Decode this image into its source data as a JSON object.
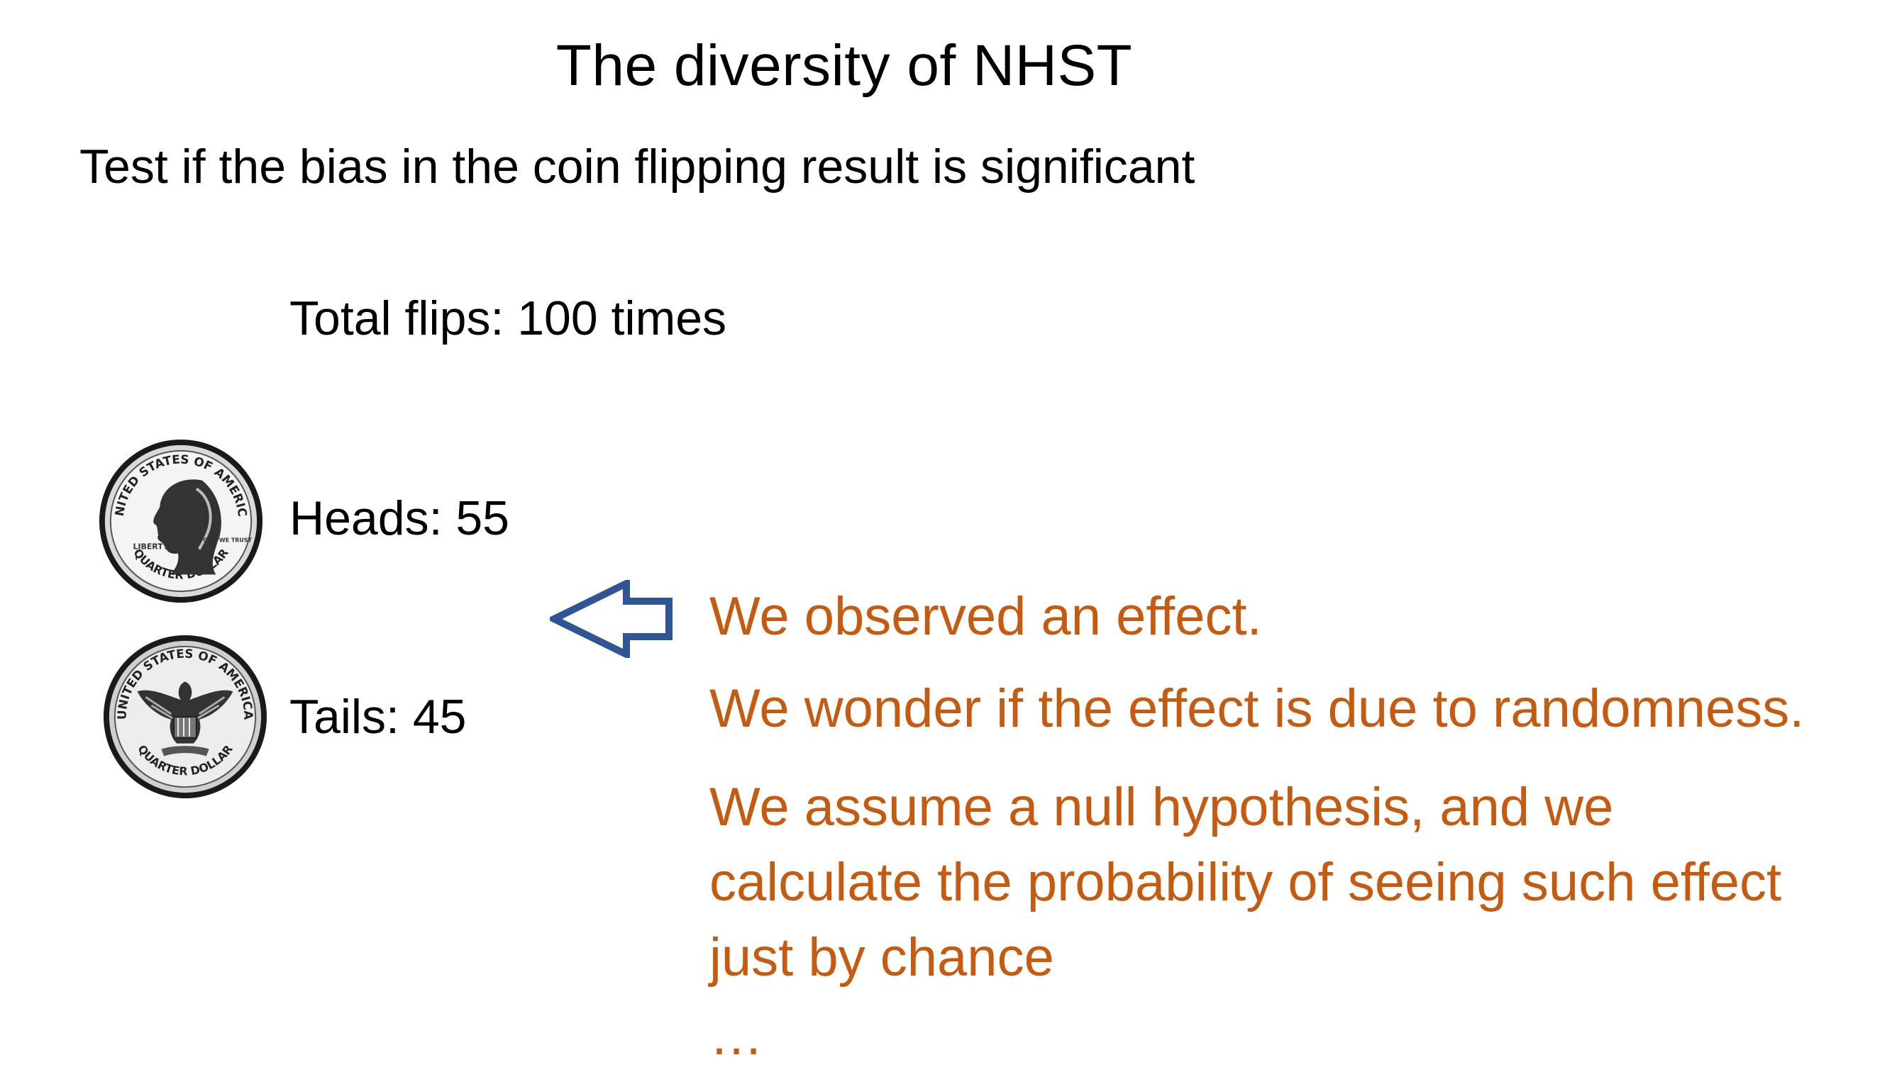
{
  "slide": {
    "title": "The diversity of NHST",
    "subtitle": "Test if the bias in the coin flipping result is significant",
    "total_flips": "Total flips: 100 times",
    "heads": {
      "label": "Heads: 55",
      "coin_icon": "quarter-heads-icon"
    },
    "tails": {
      "label": "Tails: 45",
      "coin_icon": "quarter-tails-icon"
    },
    "arrow_icon": "left-arrow-outline-icon",
    "explanation": {
      "line1": "We observed an effect.",
      "line2": "We wonder if the effect is due to randomness.",
      "para_line1": "We assume a null hypothesis, and we",
      "para_line2": "calculate the probability of seeing such effect",
      "para_line3": "just by chance",
      "ellipsis": "…"
    },
    "coin_heads_text": {
      "top": "UNITED STATES OF AMERICA",
      "bottom": "QUARTER DOLLAR",
      "left": "LIBERTY",
      "motto": "IN GOD WE TRUST"
    },
    "coin_tails_text": {
      "top": "UNITED STATES OF AMERICA",
      "bottom": "QUARTER DOLLAR"
    },
    "colors": {
      "accent_orange": "#C55A11",
      "arrow_blue": "#2F5597",
      "text": "#000000"
    }
  }
}
